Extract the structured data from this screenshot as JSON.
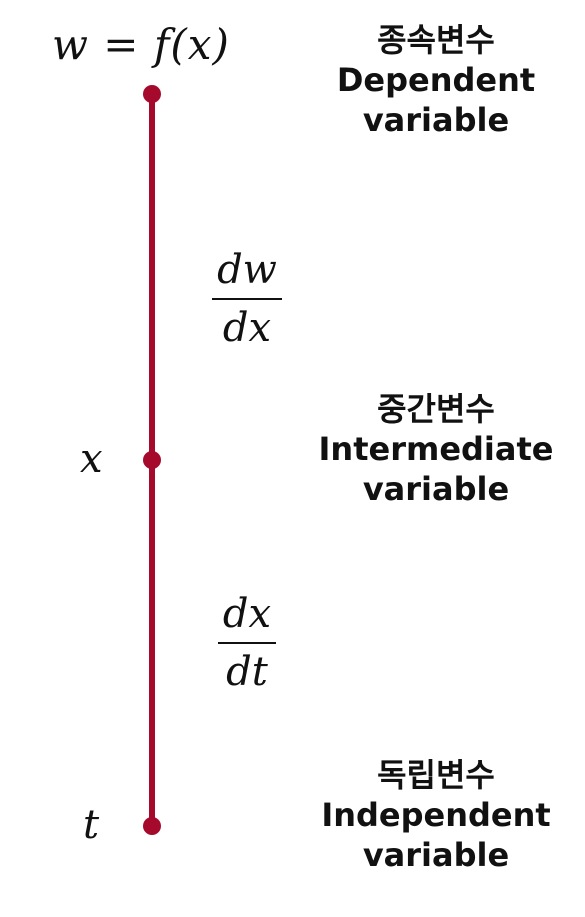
{
  "diagram": {
    "line_color": "#a50a2d",
    "top_equation": "w = f(x)",
    "mid_variable": "x",
    "bottom_variable": "t",
    "derivative_upper": {
      "numerator": "dw",
      "denominator": "dx"
    },
    "derivative_lower": {
      "numerator": "dx",
      "denominator": "dt"
    },
    "labels": {
      "dependent": {
        "korean": "종속변수",
        "english_line1": "Dependent",
        "english_line2": "variable"
      },
      "intermediate": {
        "korean": "중간변수",
        "english_line1": "Intermediate",
        "english_line2": "variable"
      },
      "independent": {
        "korean": "독립변수",
        "english_line1": "Independent",
        "english_line2": "variable"
      }
    }
  }
}
